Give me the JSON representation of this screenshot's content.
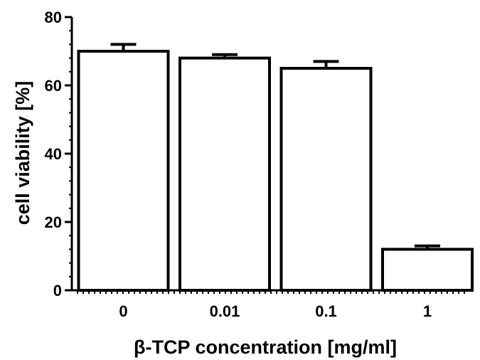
{
  "chart_data": {
    "type": "bar",
    "title": "",
    "xlabel": "β-TCP concentration [mg/ml]",
    "ylabel": "cell viability [%]",
    "categories": [
      "0",
      "0.01",
      "0.1",
      "1"
    ],
    "values": [
      70,
      68,
      65,
      12
    ],
    "errors": [
      2,
      1,
      2,
      1
    ],
    "ylim": [
      0,
      80
    ],
    "yticks": [
      0,
      20,
      40,
      60,
      80
    ],
    "ytick_labels": [
      "0",
      "20",
      "40",
      "60",
      "80"
    ],
    "grid": false,
    "legend": "none",
    "bar_fill": "#ffffff",
    "bar_stroke": "#000000"
  }
}
